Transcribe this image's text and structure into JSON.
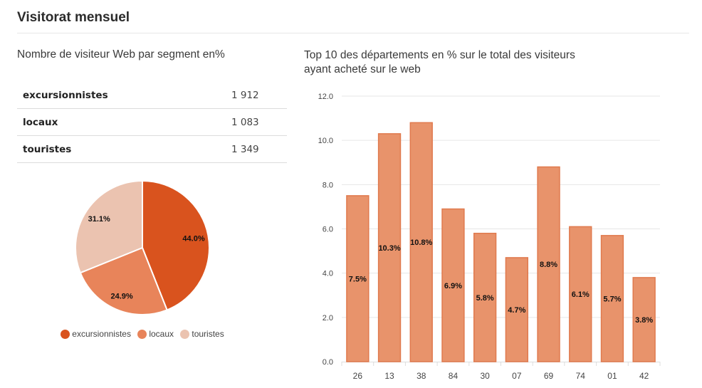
{
  "page": {
    "title": "Visitorat mensuel"
  },
  "left_panel": {
    "subtitle": "Nombre de visiteur Web par segment en%",
    "table": [
      {
        "label": "excursionnistes",
        "value": "1 912"
      },
      {
        "label": "locaux",
        "value": "1 083"
      },
      {
        "label": "touristes",
        "value": "1 349"
      }
    ]
  },
  "right_panel": {
    "subtitle": "Top 10 des départements en % sur le total des visiteurs ayant acheté sur le web"
  },
  "colors": {
    "excursionnistes": "#d9531e",
    "locaux": "#e8845a",
    "touristes": "#ebc3b0",
    "bar_fill": "#e8936b",
    "bar_stroke": "#e07a4e",
    "grid": "#e6e6e6"
  },
  "chart_data": [
    {
      "type": "pie",
      "title": "Nombre de visiteur Web par segment en%",
      "categories": [
        "excursionnistes",
        "locaux",
        "touristes"
      ],
      "values": [
        44.0,
        24.9,
        31.1
      ],
      "labels": [
        "44.0%",
        "24.9%",
        "31.1%"
      ],
      "legend": [
        "excursionnistes",
        "locaux",
        "touristes"
      ],
      "legend_position": "bottom"
    },
    {
      "type": "bar",
      "title": "Top 10 des départements en % sur le total des visiteurs ayant acheté sur le web",
      "categories": [
        "26",
        "13",
        "38",
        "84",
        "30",
        "07",
        "69",
        "74",
        "01",
        "42"
      ],
      "values": [
        7.5,
        10.3,
        10.8,
        6.9,
        5.8,
        4.7,
        8.8,
        6.1,
        5.7,
        3.8
      ],
      "labels": [
        "7.5%",
        "10.3%",
        "10.8%",
        "6.9%",
        "5.8%",
        "4.7%",
        "8.8%",
        "6.1%",
        "5.7%",
        "3.8%"
      ],
      "ylim": [
        0,
        12
      ],
      "yticks": [
        "0.0",
        "2.0",
        "4.0",
        "6.0",
        "8.0",
        "10.0",
        "12.0"
      ],
      "grid": true,
      "xlabel": "",
      "ylabel": ""
    }
  ]
}
